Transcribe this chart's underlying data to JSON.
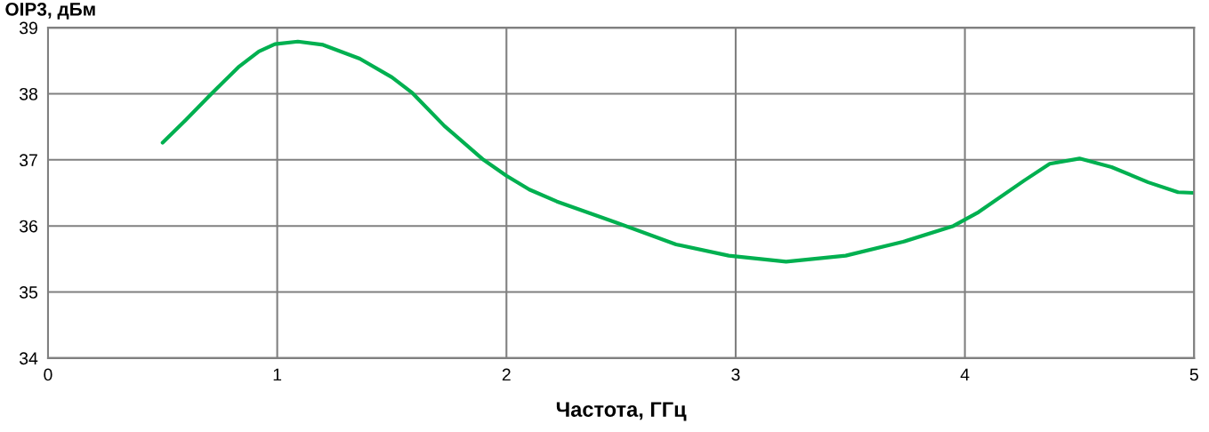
{
  "chart_data": {
    "type": "line",
    "xlabel": "Частота, ГГц",
    "ylabel": "OIP3, дБм",
    "x": [
      0.5,
      0.6,
      0.71,
      0.83,
      0.92,
      0.99,
      1.09,
      1.2,
      1.36,
      1.5,
      1.59,
      1.73,
      1.9,
      2.0,
      2.1,
      2.22,
      2.48,
      2.74,
      2.97,
      3.22,
      3.48,
      3.73,
      3.95,
      4.06,
      4.26,
      4.37,
      4.5,
      4.64,
      4.8,
      4.93,
      5.0
    ],
    "series": [
      {
        "color": "#00b050",
        "values": [
          37.26,
          37.6,
          37.99,
          38.4,
          38.64,
          38.75,
          38.79,
          38.74,
          38.53,
          38.25,
          38.01,
          37.51,
          37.0,
          36.76,
          36.55,
          36.37,
          36.05,
          35.72,
          35.55,
          35.46,
          35.55,
          35.76,
          36.0,
          36.21,
          36.69,
          36.94,
          37.02,
          36.89,
          36.66,
          36.51,
          36.5
        ]
      }
    ],
    "xlim": [
      0,
      5
    ],
    "xticks": [
      0,
      1,
      2,
      3,
      4,
      5
    ],
    "ylim": [
      34,
      39
    ],
    "yticks": [
      34,
      35,
      36,
      37,
      38,
      39
    ],
    "grid": true,
    "legend": false,
    "marker": "none",
    "line_style": "solid"
  }
}
